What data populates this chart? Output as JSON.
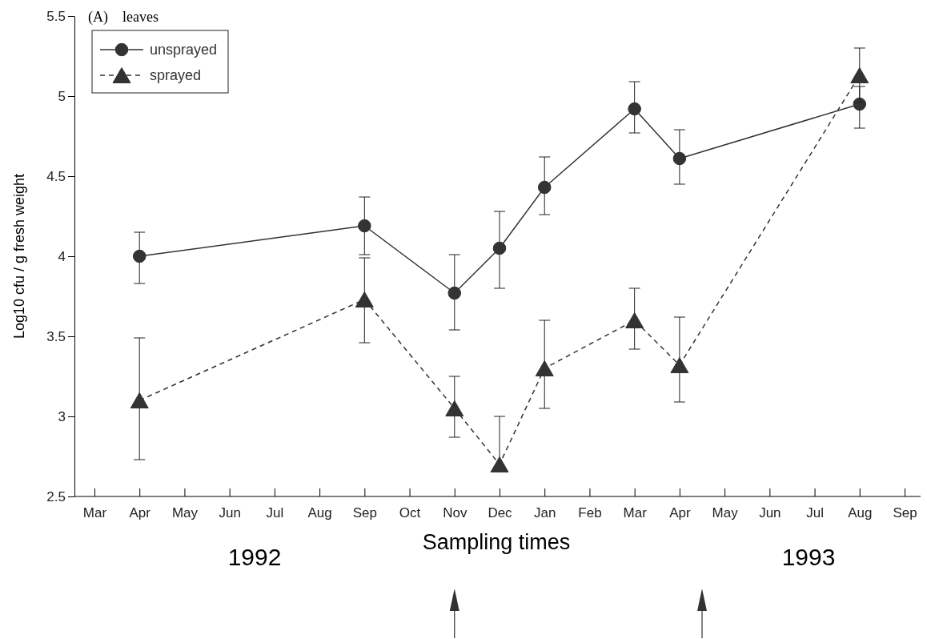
{
  "chart_data": {
    "type": "line",
    "xlabel": "Sampling times",
    "ylabel": "Log10 cfu / g fresh weight",
    "annotations": [
      "(A)    leaves",
      "1992",
      "1993"
    ],
    "categories": [
      "Mar",
      "Apr",
      "May",
      "Jun",
      "Jul",
      "Aug",
      "Sep",
      "Oct",
      "Nov",
      "Dec",
      "Jan",
      "Feb",
      "Mar",
      "Apr",
      "May",
      "Jun",
      "Jul",
      "Aug",
      "Sep"
    ],
    "ylim": [
      2.5,
      5.5
    ],
    "yticks": [
      2.5,
      3,
      3.5,
      4,
      4.5,
      5,
      5.5
    ],
    "grid": false,
    "legend": "top left",
    "series": [
      {
        "name": "unsprayed",
        "color": "#333333",
        "marker": "circle",
        "line_style": "solid",
        "values": [
          null,
          4.0,
          null,
          null,
          null,
          null,
          4.19,
          null,
          3.77,
          4.05,
          4.43,
          null,
          4.92,
          4.61,
          null,
          null,
          null,
          4.95,
          null
        ],
        "errors": [
          null,
          [
            3.83,
            4.15
          ],
          null,
          null,
          null,
          null,
          [
            4.01,
            4.37
          ],
          null,
          [
            3.54,
            4.01
          ],
          [
            3.8,
            4.28
          ],
          [
            4.26,
            4.62
          ],
          null,
          [
            4.77,
            5.09
          ],
          [
            4.45,
            4.79
          ],
          null,
          null,
          null,
          [
            4.8,
            5.06
          ],
          null
        ]
      },
      {
        "name": "sprayed",
        "color": "#333333",
        "marker": "triangle",
        "line_style": "dashed",
        "values": [
          null,
          3.1,
          null,
          null,
          null,
          null,
          3.73,
          null,
          3.05,
          2.7,
          3.3,
          null,
          3.6,
          3.32,
          null,
          null,
          null,
          5.13,
          null
        ],
        "errors": [
          null,
          [
            2.73,
            3.49
          ],
          null,
          null,
          null,
          null,
          [
            3.46,
            3.99
          ],
          null,
          [
            2.87,
            3.25
          ],
          [
            2.7,
            3.0
          ],
          [
            3.05,
            3.6
          ],
          null,
          [
            3.42,
            3.8
          ],
          [
            3.09,
            3.62
          ],
          null,
          null,
          null,
          [
            4.96,
            5.3
          ],
          null
        ]
      }
    ]
  }
}
